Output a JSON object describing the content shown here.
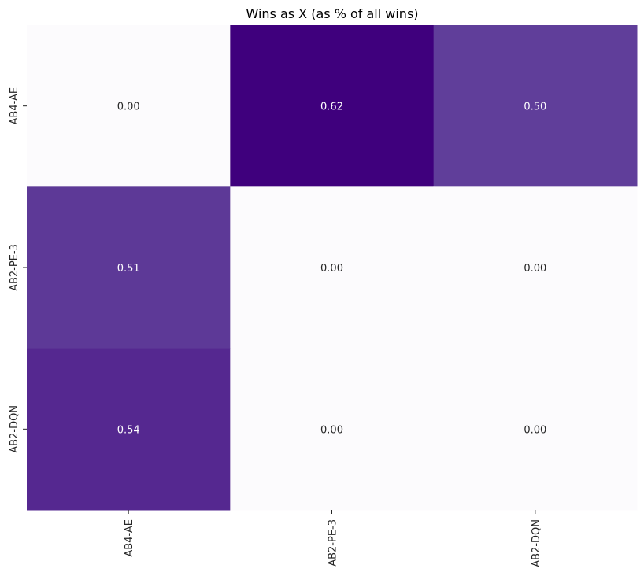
{
  "chart_data": {
    "type": "heatmap",
    "title": "Wins as X (as % of all wins)",
    "xlabel": "",
    "ylabel": "",
    "x_categories": [
      "AB4-AE",
      "AB2-PE-3",
      "AB2-DQN"
    ],
    "y_categories": [
      "AB4-AE",
      "AB2-PE-3",
      "AB2-DQN"
    ],
    "values": [
      [
        0.0,
        0.62,
        0.5
      ],
      [
        0.51,
        0.0,
        0.0
      ],
      [
        0.54,
        0.0,
        0.0
      ]
    ],
    "value_labels": [
      [
        "0.00",
        "0.62",
        "0.50"
      ],
      [
        "0.51",
        "0.00",
        "0.00"
      ],
      [
        "0.54",
        "0.00",
        "0.00"
      ]
    ],
    "colormap": "Purples",
    "color_low": "#fcfbfd",
    "color_high": "#3f007d",
    "text_color_dark": "#262626",
    "text_color_light": "#ffffff",
    "colorbar": false,
    "grid": false
  }
}
